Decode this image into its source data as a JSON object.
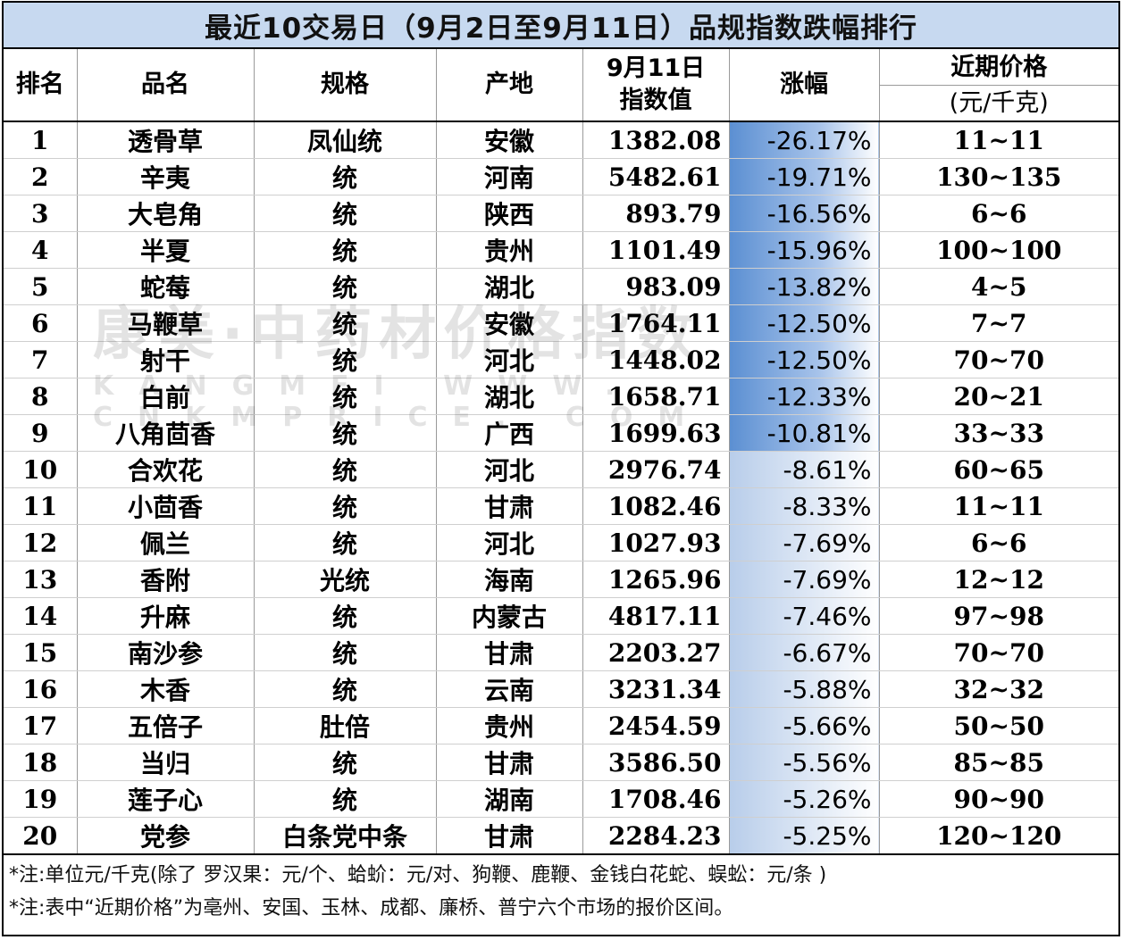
{
  "title": "最近10交易日（9月2日至9月11日）品规指数跌幅排行",
  "headers": {
    "rank": "排名",
    "name": "品名",
    "spec": "规格",
    "origin": "产地",
    "index_line1": "9月11日",
    "index_line2": "指数值",
    "change": "涨幅",
    "price_line1": "近期价格",
    "price_line2": "(元/千克)"
  },
  "rows": [
    {
      "rank": "1",
      "name": "透骨草",
      "spec": "凤仙统",
      "origin": "安徽",
      "index": "1382.08",
      "change": "-26.17%",
      "price": "11~11"
    },
    {
      "rank": "2",
      "name": "辛夷",
      "spec": "统",
      "origin": "河南",
      "index": "5482.61",
      "change": "-19.71%",
      "price": "130~135"
    },
    {
      "rank": "3",
      "name": "大皂角",
      "spec": "统",
      "origin": "陕西",
      "index": "893.79",
      "change": "-16.56%",
      "price": "6~6"
    },
    {
      "rank": "4",
      "name": "半夏",
      "spec": "统",
      "origin": "贵州",
      "index": "1101.49",
      "change": "-15.96%",
      "price": "100~100"
    },
    {
      "rank": "5",
      "name": "蛇莓",
      "spec": "统",
      "origin": "湖北",
      "index": "983.09",
      "change": "-13.82%",
      "price": "4~5"
    },
    {
      "rank": "6",
      "name": "马鞭草",
      "spec": "统",
      "origin": "安徽",
      "index": "1764.11",
      "change": "-12.50%",
      "price": "7~7"
    },
    {
      "rank": "7",
      "name": "射干",
      "spec": "统",
      "origin": "河北",
      "index": "1448.02",
      "change": "-12.50%",
      "price": "70~70"
    },
    {
      "rank": "8",
      "name": "白前",
      "spec": "统",
      "origin": "湖北",
      "index": "1658.71",
      "change": "-12.33%",
      "price": "20~21"
    },
    {
      "rank": "9",
      "name": "八角茴香",
      "spec": "统",
      "origin": "广西",
      "index": "1699.63",
      "change": "-10.81%",
      "price": "33~33"
    },
    {
      "rank": "10",
      "name": "合欢花",
      "spec": "统",
      "origin": "河北",
      "index": "2976.74",
      "change": "-8.61%",
      "price": "60~65"
    },
    {
      "rank": "11",
      "name": "小茴香",
      "spec": "统",
      "origin": "甘肃",
      "index": "1082.46",
      "change": "-8.33%",
      "price": "11~11"
    },
    {
      "rank": "12",
      "name": "佩兰",
      "spec": "统",
      "origin": "河北",
      "index": "1027.93",
      "change": "-7.69%",
      "price": "6~6"
    },
    {
      "rank": "13",
      "name": "香附",
      "spec": "光统",
      "origin": "海南",
      "index": "1265.96",
      "change": "-7.69%",
      "price": "12~12"
    },
    {
      "rank": "14",
      "name": "升麻",
      "spec": "统",
      "origin": "内蒙古",
      "index": "4817.11",
      "change": "-7.46%",
      "price": "97~98"
    },
    {
      "rank": "15",
      "name": "南沙参",
      "spec": "统",
      "origin": "甘肃",
      "index": "2203.27",
      "change": "-6.67%",
      "price": "70~70"
    },
    {
      "rank": "16",
      "name": "木香",
      "spec": "统",
      "origin": "云南",
      "index": "3231.34",
      "change": "-5.88%",
      "price": "32~32"
    },
    {
      "rank": "17",
      "name": "五倍子",
      "spec": "肚倍",
      "origin": "贵州",
      "index": "2454.59",
      "change": "-5.66%",
      "price": "50~50"
    },
    {
      "rank": "18",
      "name": "当归",
      "spec": "统",
      "origin": "甘肃",
      "index": "3586.50",
      "change": "-5.56%",
      "price": "85~85"
    },
    {
      "rank": "19",
      "name": "莲子心",
      "spec": "统",
      "origin": "湖南",
      "index": "1708.46",
      "change": "-5.26%",
      "price": "90~90"
    },
    {
      "rank": "20",
      "name": "党参",
      "spec": "白条党中条",
      "origin": "甘肃",
      "index": "2284.23",
      "change": "-5.25%",
      "price": "120~120"
    }
  ],
  "notes": [
    "*注:单位元/千克(除了 罗汉果：元/个、蛤蚧：元/对、狗鞭、鹿鞭、金钱白花蛇、蜈蚣：元/条 )",
    "*注:表中“近期价格”为亳州、安国、玉林、成都、廉桥、普宁六个市场的报价区间。"
  ],
  "watermark": {
    "line1": "康美·中药材价格指数",
    "line2": "KANGMEI WWW. CNKMPRICE. COM"
  },
  "colors": {
    "title_bg": "#c7d9f0",
    "change_highlight": "#5b8fd2"
  }
}
